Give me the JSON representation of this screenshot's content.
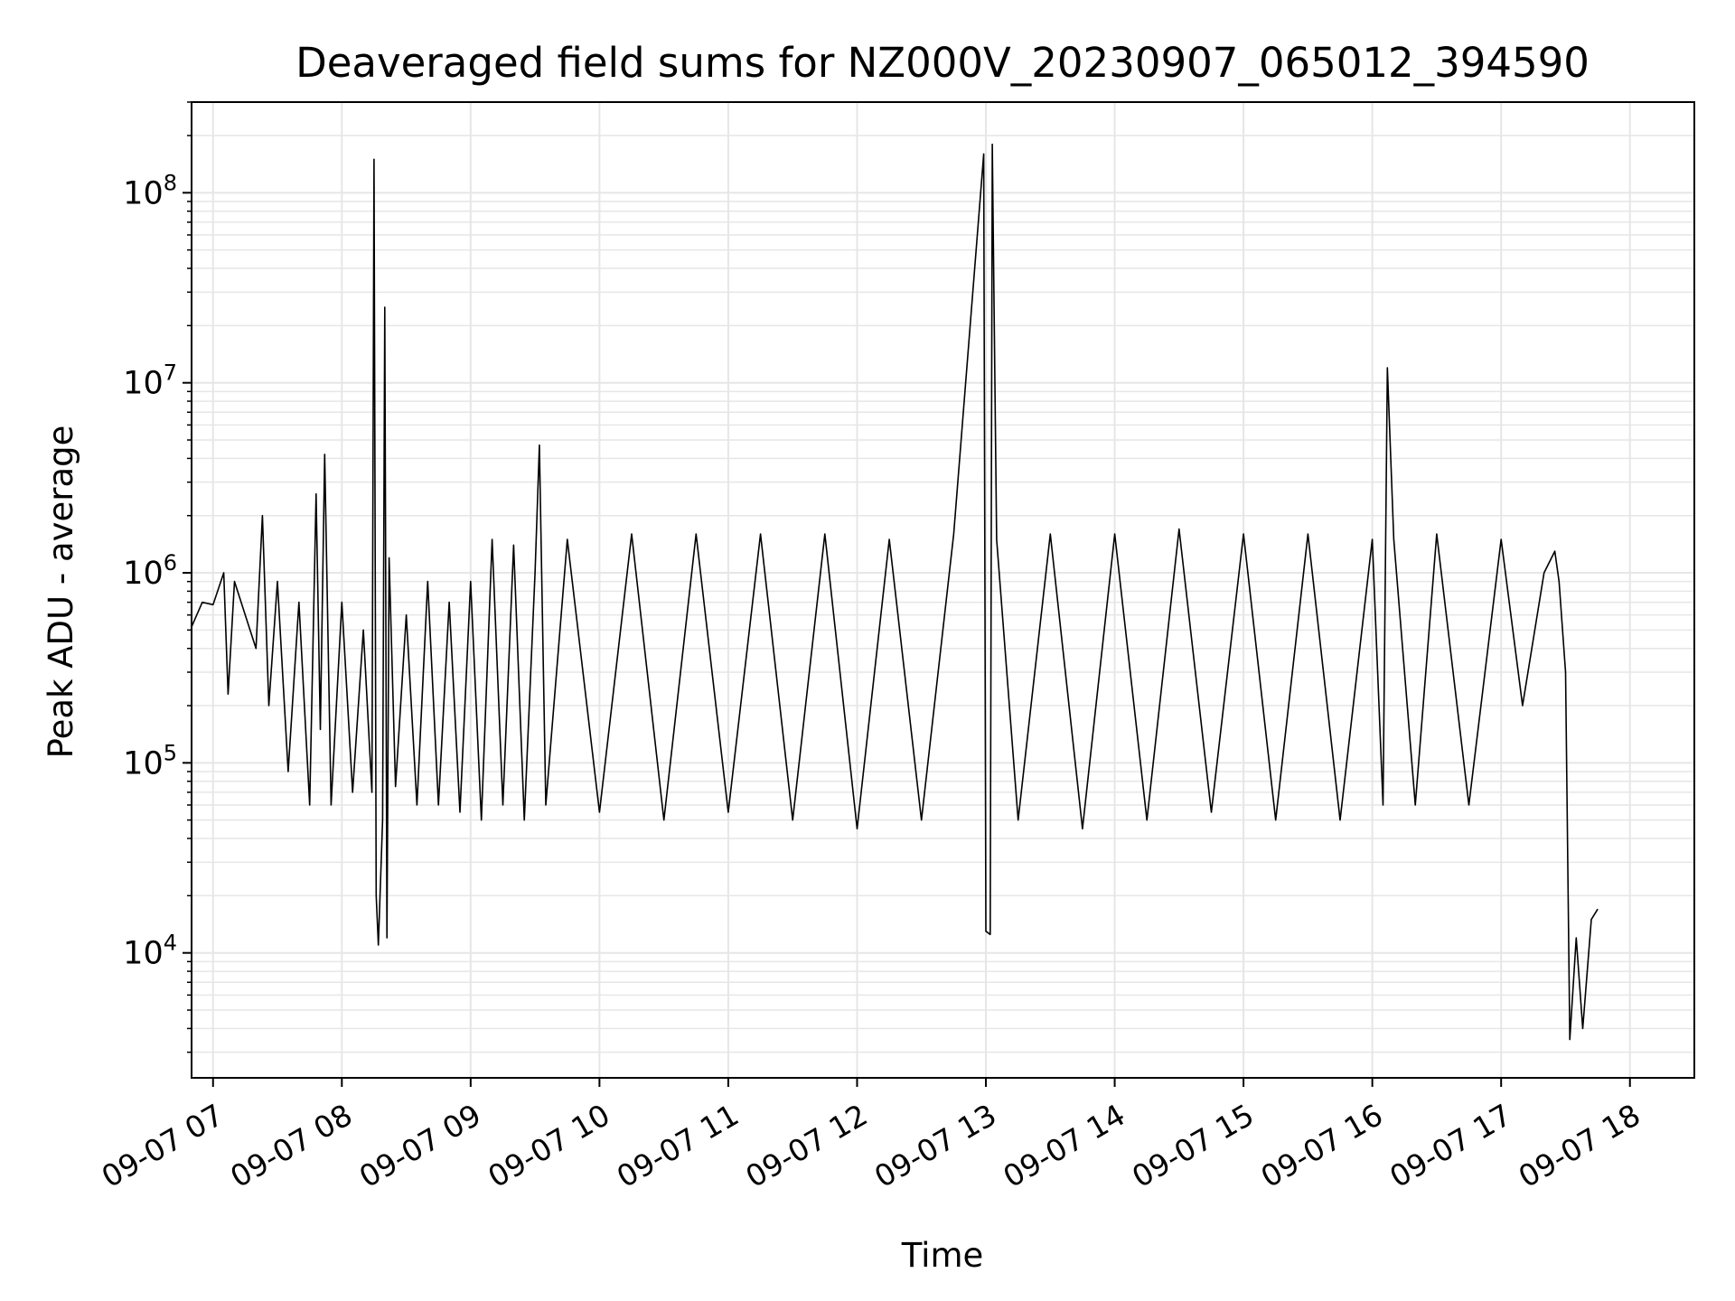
{
  "chart_data": {
    "type": "line",
    "title": "Deaveraged field sums for NZ000V_20230907_065012_394590",
    "xlabel": "Time",
    "ylabel": "Peak ADU - average",
    "x_range": [
      "2023-09-07 06:50",
      "2023-09-07 18:30"
    ],
    "y_range": [
      2200,
      300000000
    ],
    "y_scale": "log",
    "grid": "major and minor, both axes",
    "x_ticks": [
      {
        "value": "2023-09-07 07:00",
        "label": "09-07 07"
      },
      {
        "value": "2023-09-07 08:00",
        "label": "09-07 08"
      },
      {
        "value": "2023-09-07 09:00",
        "label": "09-07 09"
      },
      {
        "value": "2023-09-07 10:00",
        "label": "09-07 10"
      },
      {
        "value": "2023-09-07 11:00",
        "label": "09-07 11"
      },
      {
        "value": "2023-09-07 12:00",
        "label": "09-07 12"
      },
      {
        "value": "2023-09-07 13:00",
        "label": "09-07 13"
      },
      {
        "value": "2023-09-07 14:00",
        "label": "09-07 14"
      },
      {
        "value": "2023-09-07 15:00",
        "label": "09-07 15"
      },
      {
        "value": "2023-09-07 16:00",
        "label": "09-07 16"
      },
      {
        "value": "2023-09-07 17:00",
        "label": "09-07 17"
      },
      {
        "value": "2023-09-07 18:00",
        "label": "09-07 18"
      }
    ],
    "y_ticks": [
      {
        "value": 10000,
        "base": "10",
        "exp": "4"
      },
      {
        "value": 100000,
        "base": "10",
        "exp": "5"
      },
      {
        "value": 1000000,
        "base": "10",
        "exp": "6"
      },
      {
        "value": 10000000,
        "base": "10",
        "exp": "7"
      },
      {
        "value": 100000000,
        "base": "10",
        "exp": "8"
      }
    ],
    "series": [
      {
        "color": "#000000",
        "points": [
          [
            "2023-09-07 06:50",
            520000
          ],
          [
            "2023-09-07 06:55",
            700000
          ],
          [
            "2023-09-07 07:00",
            680000
          ],
          [
            "2023-09-07 07:05",
            1000000
          ],
          [
            "2023-09-07 07:07",
            230000
          ],
          [
            "2023-09-07 07:10",
            900000
          ],
          [
            "2023-09-07 07:15",
            600000
          ],
          [
            "2023-09-07 07:20",
            400000
          ],
          [
            "2023-09-07 07:23",
            2000000
          ],
          [
            "2023-09-07 07:26",
            200000
          ],
          [
            "2023-09-07 07:30",
            900000
          ],
          [
            "2023-09-07 07:35",
            90000
          ],
          [
            "2023-09-07 07:40",
            700000
          ],
          [
            "2023-09-07 07:45",
            60000
          ],
          [
            "2023-09-07 07:48",
            2600000
          ],
          [
            "2023-09-07 07:50",
            150000
          ],
          [
            "2023-09-07 07:52",
            4200000
          ],
          [
            "2023-09-07 07:55",
            60000
          ],
          [
            "2023-09-07 08:00",
            700000
          ],
          [
            "2023-09-07 08:05",
            70000
          ],
          [
            "2023-09-07 08:10",
            500000
          ],
          [
            "2023-09-07 08:14",
            70000
          ],
          [
            "2023-09-07 08:15",
            150000000
          ],
          [
            "2023-09-07 08:16",
            20000
          ],
          [
            "2023-09-07 08:17",
            11000
          ],
          [
            "2023-09-07 08:19",
            50000
          ],
          [
            "2023-09-07 08:20",
            25000000
          ],
          [
            "2023-09-07 08:21",
            12000
          ],
          [
            "2023-09-07 08:22",
            1200000
          ],
          [
            "2023-09-07 08:25",
            75000
          ],
          [
            "2023-09-07 08:30",
            600000
          ],
          [
            "2023-09-07 08:35",
            60000
          ],
          [
            "2023-09-07 08:40",
            900000
          ],
          [
            "2023-09-07 08:45",
            60000
          ],
          [
            "2023-09-07 08:50",
            700000
          ],
          [
            "2023-09-07 08:55",
            55000
          ],
          [
            "2023-09-07 09:00",
            900000
          ],
          [
            "2023-09-07 09:05",
            50000
          ],
          [
            "2023-09-07 09:10",
            1500000
          ],
          [
            "2023-09-07 09:15",
            60000
          ],
          [
            "2023-09-07 09:20",
            1400000
          ],
          [
            "2023-09-07 09:25",
            50000
          ],
          [
            "2023-09-07 09:30",
            1000000
          ],
          [
            "2023-09-07 09:32",
            4700000
          ],
          [
            "2023-09-07 09:35",
            60000
          ],
          [
            "2023-09-07 09:45",
            1500000
          ],
          [
            "2023-09-07 10:00",
            55000
          ],
          [
            "2023-09-07 10:15",
            1600000
          ],
          [
            "2023-09-07 10:30",
            50000
          ],
          [
            "2023-09-07 10:45",
            1600000
          ],
          [
            "2023-09-07 11:00",
            55000
          ],
          [
            "2023-09-07 11:15",
            1600000
          ],
          [
            "2023-09-07 11:30",
            50000
          ],
          [
            "2023-09-07 11:45",
            1600000
          ],
          [
            "2023-09-07 12:00",
            45000
          ],
          [
            "2023-09-07 12:15",
            1500000
          ],
          [
            "2023-09-07 12:30",
            50000
          ],
          [
            "2023-09-07 12:45",
            1600000
          ],
          [
            "2023-09-07 12:59",
            160000000
          ],
          [
            "2023-09-07 13:00",
            13000
          ],
          [
            "2023-09-07 13:02",
            12500
          ],
          [
            "2023-09-07 13:03",
            180000000
          ],
          [
            "2023-09-07 13:05",
            1500000
          ],
          [
            "2023-09-07 13:15",
            50000
          ],
          [
            "2023-09-07 13:30",
            1600000
          ],
          [
            "2023-09-07 13:45",
            45000
          ],
          [
            "2023-09-07 14:00",
            1600000
          ],
          [
            "2023-09-07 14:15",
            50000
          ],
          [
            "2023-09-07 14:30",
            1700000
          ],
          [
            "2023-09-07 14:45",
            55000
          ],
          [
            "2023-09-07 15:00",
            1600000
          ],
          [
            "2023-09-07 15:15",
            50000
          ],
          [
            "2023-09-07 15:30",
            1600000
          ],
          [
            "2023-09-07 15:45",
            50000
          ],
          [
            "2023-09-07 16:00",
            1500000
          ],
          [
            "2023-09-07 16:05",
            60000
          ],
          [
            "2023-09-07 16:07",
            12000000
          ],
          [
            "2023-09-07 16:10",
            1500000
          ],
          [
            "2023-09-07 16:20",
            60000
          ],
          [
            "2023-09-07 16:30",
            1600000
          ],
          [
            "2023-09-07 16:45",
            60000
          ],
          [
            "2023-09-07 17:00",
            1500000
          ],
          [
            "2023-09-07 17:10",
            200000
          ],
          [
            "2023-09-07 17:20",
            1000000
          ],
          [
            "2023-09-07 17:25",
            1300000
          ],
          [
            "2023-09-07 17:27",
            900000
          ],
          [
            "2023-09-07 17:30",
            300000
          ],
          [
            "2023-09-07 17:32",
            3500
          ],
          [
            "2023-09-07 17:35",
            12000
          ],
          [
            "2023-09-07 17:38",
            4000
          ],
          [
            "2023-09-07 17:42",
            15000
          ],
          [
            "2023-09-07 17:45",
            17000
          ]
        ]
      }
    ]
  }
}
